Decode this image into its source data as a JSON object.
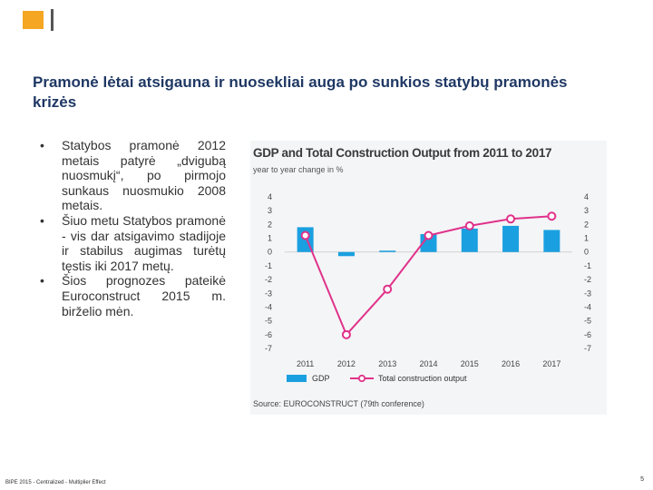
{
  "title": "Pramonė lėtai atsigauna ir nuosekliai auga po sunkios statybų pramonės krizės",
  "bullets": [
    "Statybos pramonė 2012 metais patyrė „dvigubą nuosmukį“, po pirmojo sunkaus nuosmukio 2008 metais.",
    "Šiuo metu Statybos pramonė - vis dar atsigavimo stadijoje ir stabilus augimas turėtų tęstis iki 2017 metų.",
    "Šios prognozes pateikė Euroconstruct 2015 m. birželio mėn."
  ],
  "bullet_symbol": "•",
  "footer": {
    "left": "BIPE 2015 - Centralized - Multiplier Effect",
    "page": "5"
  },
  "colors": {
    "accent": "#f5a623",
    "gdp": "#1aa0e0",
    "output": "#e0328a",
    "title": "#1f3864"
  },
  "chart_data": {
    "type": "bar+line",
    "title": "GDP and Total Construction Output from 2011 to 2017",
    "subtitle": "year to year change in %",
    "source": "Source: EUROCONSTRUCT (79th conference)",
    "categories": [
      "2011",
      "2012",
      "2013",
      "2014",
      "2015",
      "2016",
      "2017"
    ],
    "ylim": [
      -7,
      4
    ],
    "yticks": [
      "4",
      "3",
      "2",
      "1",
      "0",
      "-1",
      "-2",
      "-3",
      "-4",
      "-5",
      "-6",
      "-7"
    ],
    "series": [
      {
        "name": "GDP",
        "type": "bar",
        "values": [
          1.8,
          -0.3,
          0.1,
          1.3,
          1.7,
          1.9,
          1.6
        ]
      },
      {
        "name": "Total construction output",
        "type": "line",
        "values": [
          1.2,
          -6.0,
          -2.7,
          1.2,
          1.9,
          2.4,
          2.6
        ]
      }
    ]
  }
}
